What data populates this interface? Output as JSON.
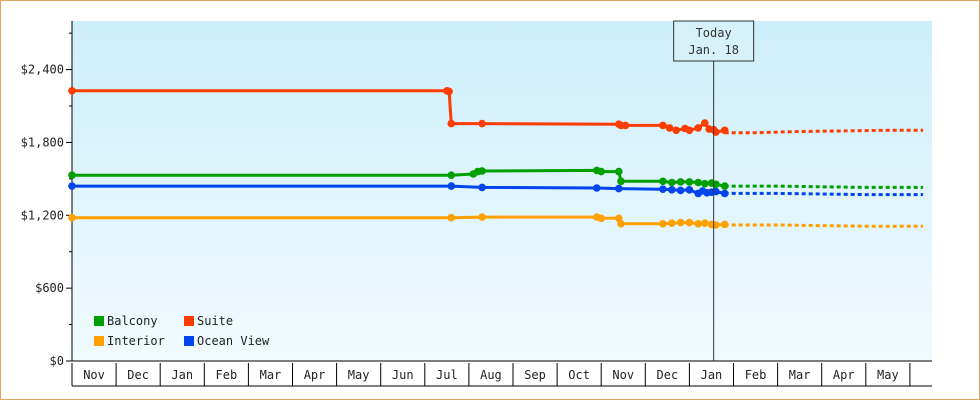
{
  "chart_data": {
    "type": "line",
    "y_ticks": [
      {
        "value": 0,
        "label": "$0"
      },
      {
        "value": 600,
        "label": "$600"
      },
      {
        "value": 1200,
        "label": "$1,200"
      },
      {
        "value": 1800,
        "label": "$1,800"
      },
      {
        "value": 2400,
        "label": "$2,400"
      }
    ],
    "ylim": [
      0,
      2800
    ],
    "months": [
      "Nov",
      "Dec",
      "Jan",
      "Feb",
      "Mar",
      "Apr",
      "May",
      "Jun",
      "Jul",
      "Aug",
      "Sep",
      "Oct",
      "Nov",
      "Dec",
      "Jan",
      "Feb",
      "Mar",
      "Apr",
      "May"
    ],
    "today": {
      "line1": "Today",
      "line2": "Jan. 18",
      "x": 14.55
    },
    "legend_placement": "bottom-left",
    "series": [
      {
        "name": "Suite",
        "color": "#ff3c00",
        "points": [
          [
            0.0,
            2225
          ],
          [
            8.5,
            2225
          ],
          [
            8.55,
            2220
          ],
          [
            8.6,
            1955
          ],
          [
            9.3,
            1955
          ],
          [
            12.4,
            1950
          ],
          [
            12.45,
            1940
          ],
          [
            12.55,
            1940
          ],
          [
            13.4,
            1940
          ],
          [
            13.55,
            1920
          ],
          [
            13.7,
            1900
          ],
          [
            13.9,
            1915
          ],
          [
            14.0,
            1900
          ],
          [
            14.2,
            1920
          ],
          [
            14.35,
            1960
          ],
          [
            14.45,
            1910
          ],
          [
            14.55,
            1905
          ],
          [
            14.6,
            1885
          ],
          [
            14.8,
            1900
          ]
        ],
        "forecast": [
          [
            14.8,
            1880
          ],
          [
            15.5,
            1880
          ],
          [
            16.5,
            1890
          ],
          [
            17.5,
            1895
          ],
          [
            18.5,
            1900
          ],
          [
            19.3,
            1900
          ]
        ]
      },
      {
        "name": "Balcony",
        "color": "#00a000",
        "points": [
          [
            0.0,
            1530
          ],
          [
            8.6,
            1530
          ],
          [
            9.1,
            1540
          ],
          [
            9.2,
            1560
          ],
          [
            9.3,
            1565
          ],
          [
            11.9,
            1570
          ],
          [
            12.0,
            1560
          ],
          [
            12.4,
            1560
          ],
          [
            12.45,
            1480
          ],
          [
            13.4,
            1480
          ],
          [
            13.6,
            1470
          ],
          [
            13.8,
            1475
          ],
          [
            14.0,
            1475
          ],
          [
            14.2,
            1470
          ],
          [
            14.35,
            1460
          ],
          [
            14.5,
            1465
          ],
          [
            14.6,
            1455
          ],
          [
            14.8,
            1440
          ]
        ],
        "forecast": [
          [
            14.8,
            1440
          ],
          [
            16.0,
            1440
          ],
          [
            17.0,
            1435
          ],
          [
            18.0,
            1430
          ],
          [
            19.3,
            1430
          ]
        ]
      },
      {
        "name": "Ocean View",
        "color": "#0044ee",
        "points": [
          [
            0.0,
            1440
          ],
          [
            8.6,
            1440
          ],
          [
            9.3,
            1430
          ],
          [
            11.9,
            1425
          ],
          [
            12.4,
            1420
          ],
          [
            13.4,
            1415
          ],
          [
            13.6,
            1410
          ],
          [
            13.8,
            1405
          ],
          [
            14.0,
            1410
          ],
          [
            14.2,
            1380
          ],
          [
            14.3,
            1400
          ],
          [
            14.4,
            1385
          ],
          [
            14.5,
            1390
          ],
          [
            14.6,
            1395
          ],
          [
            14.8,
            1380
          ]
        ],
        "forecast": [
          [
            14.8,
            1380
          ],
          [
            16.0,
            1380
          ],
          [
            17.0,
            1375
          ],
          [
            18.0,
            1370
          ],
          [
            19.3,
            1370
          ]
        ]
      },
      {
        "name": "Interior",
        "color": "#ffa000",
        "points": [
          [
            0.0,
            1180
          ],
          [
            8.6,
            1180
          ],
          [
            9.3,
            1185
          ],
          [
            11.9,
            1185
          ],
          [
            12.0,
            1175
          ],
          [
            12.4,
            1175
          ],
          [
            12.45,
            1130
          ],
          [
            13.4,
            1130
          ],
          [
            13.6,
            1135
          ],
          [
            13.8,
            1140
          ],
          [
            14.0,
            1140
          ],
          [
            14.2,
            1130
          ],
          [
            14.35,
            1135
          ],
          [
            14.5,
            1125
          ],
          [
            14.6,
            1120
          ],
          [
            14.8,
            1125
          ]
        ],
        "forecast": [
          [
            14.8,
            1120
          ],
          [
            16.0,
            1120
          ],
          [
            17.0,
            1115
          ],
          [
            18.0,
            1110
          ],
          [
            19.3,
            1110
          ]
        ]
      }
    ],
    "legend": [
      {
        "name": "Balcony",
        "color": "#00a000"
      },
      {
        "name": "Suite",
        "color": "#ff3c00"
      },
      {
        "name": "Interior",
        "color": "#ffa000"
      },
      {
        "name": "Ocean View",
        "color": "#0044ee"
      }
    ]
  }
}
